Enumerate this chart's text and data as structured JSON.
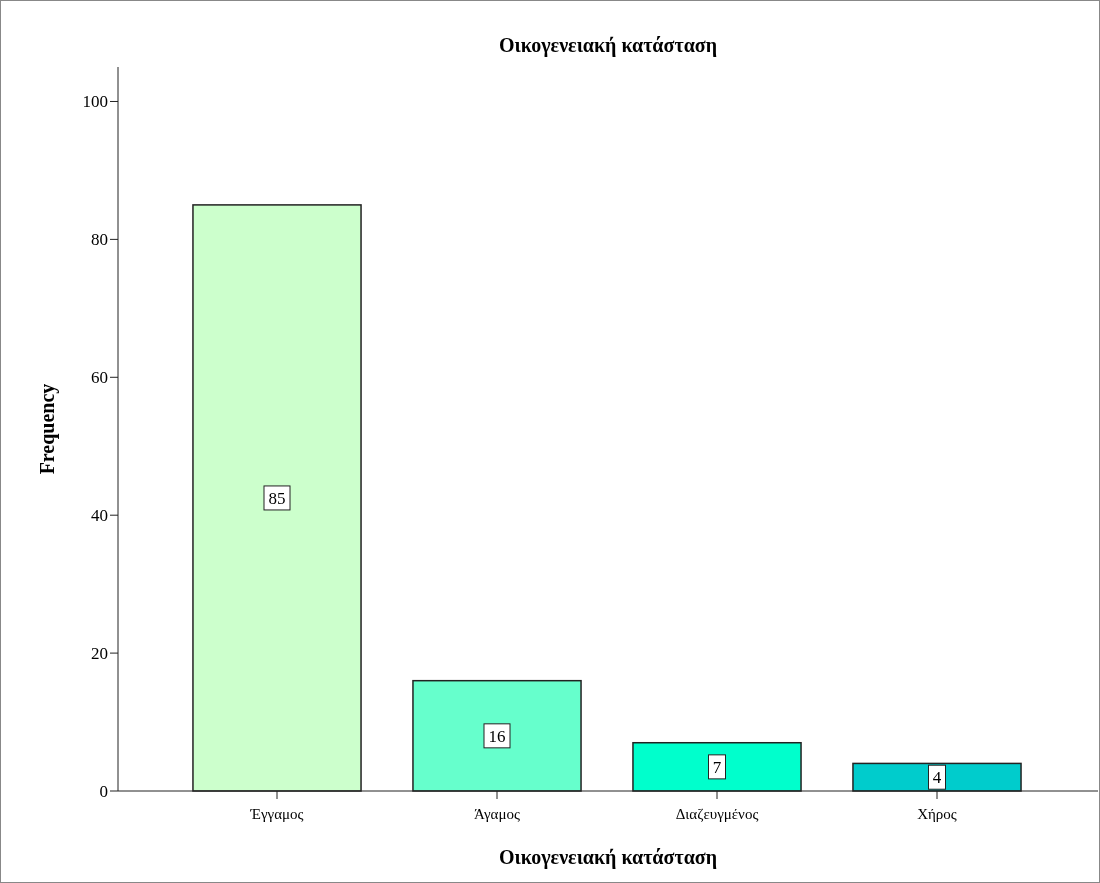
{
  "chart_data": {
    "type": "bar",
    "title": "Οικογενειακή κατάσταση",
    "xlabel": "Οικογενειακή κατάσταση",
    "ylabel": "Frequency",
    "categories": [
      "Έγγαμος",
      "Άγαμος",
      "Διαζευγμένος",
      "Χήρος"
    ],
    "values": [
      85,
      16,
      7,
      4
    ],
    "colors": [
      "#ccffcc",
      "#66ffcc",
      "#00ffcc",
      "#00cccc"
    ],
    "ylim": [
      0,
      105
    ],
    "yticks": [
      0,
      20,
      40,
      60,
      80,
      100
    ],
    "data_labels": true
  }
}
